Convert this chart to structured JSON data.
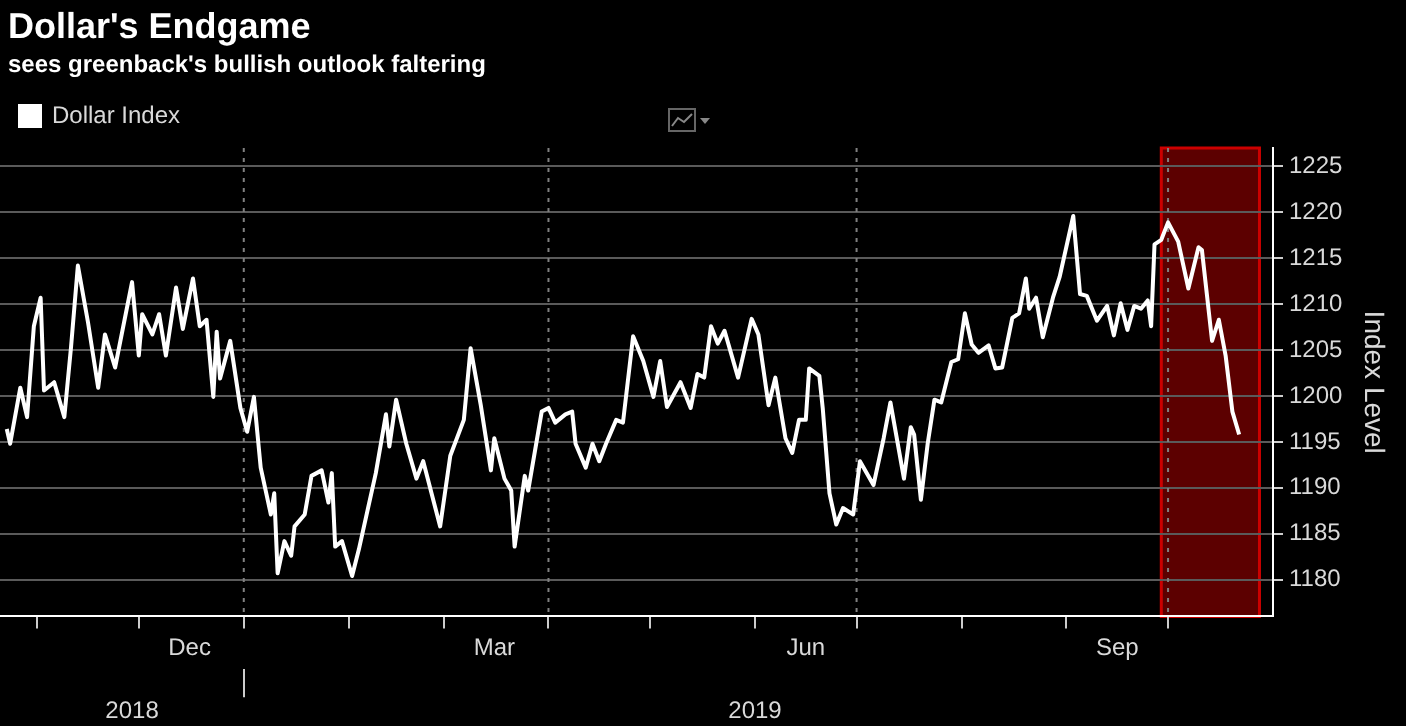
{
  "chart_data": {
    "type": "line",
    "title": "Dollar's Endgame",
    "subtitle": "sees greenback's bullish outlook faltering",
    "ylabel": "Index Level",
    "x": [
      "2018-10-23",
      "2018-10-24",
      "2018-10-27",
      "2018-10-29",
      "2018-10-31",
      "2018-11-02",
      "2018-11-03",
      "2018-11-06",
      "2018-11-09",
      "2018-11-11",
      "2018-11-13",
      "2018-11-16",
      "2018-11-19",
      "2018-11-21",
      "2018-11-24",
      "2018-11-29",
      "2018-12-01",
      "2018-12-02",
      "2018-12-05",
      "2018-12-07",
      "2018-12-09",
      "2018-12-12",
      "2018-12-14",
      "2018-12-17",
      "2018-12-19",
      "2018-12-21",
      "2018-12-23",
      "2018-12-24",
      "2018-12-25",
      "2018-12-28",
      "2018-12-31",
      "2019-01-02",
      "2019-01-04",
      "2019-01-06",
      "2019-01-09",
      "2019-01-10",
      "2019-01-11",
      "2019-01-13",
      "2019-01-15",
      "2019-01-16",
      "2019-01-19",
      "2019-01-21",
      "2019-01-24",
      "2019-01-26",
      "2019-01-27",
      "2019-01-28",
      "2019-01-30",
      "2019-02-02",
      "2019-02-04",
      "2019-02-09",
      "2019-02-12",
      "2019-02-13",
      "2019-02-15",
      "2019-02-18",
      "2019-02-21",
      "2019-02-23",
      "2019-02-28",
      "2019-03-03",
      "2019-03-07",
      "2019-03-09",
      "2019-03-12",
      "2019-03-15",
      "2019-03-16",
      "2019-03-19",
      "2019-03-21",
      "2019-03-22",
      "2019-03-25",
      "2019-03-26",
      "2019-03-30",
      "2019-04-01",
      "2019-04-03",
      "2019-04-06",
      "2019-04-08",
      "2019-04-09",
      "2019-04-12",
      "2019-04-14",
      "2019-04-16",
      "2019-04-18",
      "2019-04-21",
      "2019-04-23",
      "2019-04-26",
      "2019-04-29",
      "2019-05-02",
      "2019-05-04",
      "2019-05-06",
      "2019-05-10",
      "2019-05-13",
      "2019-05-15",
      "2019-05-17",
      "2019-05-19",
      "2019-05-21",
      "2019-05-23",
      "2019-05-27",
      "2019-05-31",
      "2019-06-02",
      "2019-06-05",
      "2019-06-07",
      "2019-06-10",
      "2019-06-12",
      "2019-06-14",
      "2019-06-16",
      "2019-06-17",
      "2019-06-20",
      "2019-06-21",
      "2019-06-23",
      "2019-06-25",
      "2019-06-27",
      "2019-06-30",
      "2019-07-02",
      "2019-07-06",
      "2019-07-09",
      "2019-07-11",
      "2019-07-15",
      "2019-07-17",
      "2019-07-18",
      "2019-07-20",
      "2019-07-22",
      "2019-07-24",
      "2019-07-26",
      "2019-07-29",
      "2019-07-31",
      "2019-08-02",
      "2019-08-04",
      "2019-08-06",
      "2019-08-09",
      "2019-08-11",
      "2019-08-13",
      "2019-08-16",
      "2019-08-18",
      "2019-08-20",
      "2019-08-21",
      "2019-08-23",
      "2019-08-25",
      "2019-08-28",
      "2019-08-30",
      "2019-09-03",
      "2019-09-05",
      "2019-09-07",
      "2019-09-10",
      "2019-09-13",
      "2019-09-15",
      "2019-09-17",
      "2019-09-19",
      "2019-09-21",
      "2019-09-23",
      "2019-09-25",
      "2019-09-26",
      "2019-09-27",
      "2019-09-29",
      "2019-10-01",
      "2019-10-04",
      "2019-10-07",
      "2019-10-10",
      "2019-10-11",
      "2019-10-14",
      "2019-10-16",
      "2019-10-18",
      "2019-10-20",
      "2019-10-22"
    ],
    "series": [
      {
        "name": "Dollar Index",
        "color": "#ffffff",
        "values": [
          1196.4,
          1194.8,
          1200.9,
          1197.7,
          1207.6,
          1210.7,
          1200.6,
          1201.5,
          1197.7,
          1205.4,
          1214.2,
          1208,
          1200.9,
          1206.7,
          1203.1,
          1212.4,
          1204.4,
          1208.9,
          1206.7,
          1208.9,
          1204.4,
          1211.8,
          1207.3,
          1212.8,
          1207.6,
          1208.3,
          1199.9,
          1207,
          1201.9,
          1206,
          1198.7,
          1196.1,
          1199.9,
          1192.2,
          1187.1,
          1189.4,
          1180.7,
          1184.2,
          1182.6,
          1185.8,
          1187.1,
          1191.3,
          1191.9,
          1188.4,
          1191.6,
          1183.6,
          1184.2,
          1180.4,
          1183.3,
          1191.6,
          1198,
          1194.5,
          1199.6,
          1194.8,
          1191,
          1192.9,
          1185.8,
          1193.5,
          1197.4,
          1205.2,
          1199,
          1191.9,
          1195.4,
          1191,
          1189.7,
          1183.6,
          1191.3,
          1189.7,
          1198.3,
          1198.7,
          1197.1,
          1198,
          1198.3,
          1194.8,
          1192.2,
          1194.8,
          1192.9,
          1194.8,
          1197.4,
          1197.1,
          1206.5,
          1203.8,
          1199.9,
          1203.8,
          1198.8,
          1201.5,
          1198.7,
          1202.4,
          1202,
          1207.6,
          1205.7,
          1207.1,
          1202,
          1208.4,
          1206.7,
          1199,
          1202,
          1195.4,
          1193.8,
          1197.4,
          1197.4,
          1203,
          1202.2,
          1198.7,
          1189.4,
          1186,
          1187.8,
          1187.1,
          1192.9,
          1190.3,
          1195.4,
          1199.3,
          1191,
          1196.6,
          1195.8,
          1188.7,
          1194.8,
          1199.6,
          1199.3,
          1203.7,
          1204,
          1209,
          1205.6,
          1204.7,
          1205.5,
          1203,
          1203.1,
          1208.5,
          1209,
          1212.8,
          1209.5,
          1210.7,
          1206.4,
          1210.7,
          1213,
          1219.6,
          1211.1,
          1210.9,
          1208.2,
          1209.8,
          1206.6,
          1210.1,
          1207.2,
          1209.8,
          1209.5,
          1210.4,
          1207.6,
          1216.5,
          1217,
          1218.9,
          1216.8,
          1211.7,
          1216.2,
          1215.9,
          1206,
          1208.3,
          1204.4,
          1198.3,
          1195.8
        ]
      }
    ],
    "xlim": [
      "2018-10-21",
      "2019-11-01"
    ],
    "xticks": [
      {
        "value": "2018-11-01",
        "label": null
      },
      {
        "value": "2018-12-01",
        "label": null
      },
      {
        "value": "2018-12-16",
        "label": "Dec"
      },
      {
        "value": "2019-01-01",
        "label": null
      },
      {
        "value": "2019-02-01",
        "label": null
      },
      {
        "value": "2019-03-01",
        "label": null
      },
      {
        "value": "2019-03-16",
        "label": "Mar"
      },
      {
        "value": "2019-04-01",
        "label": null
      },
      {
        "value": "2019-05-01",
        "label": null
      },
      {
        "value": "2019-06-01",
        "label": null
      },
      {
        "value": "2019-06-16",
        "label": "Jun"
      },
      {
        "value": "2019-07-01",
        "label": null
      },
      {
        "value": "2019-08-01",
        "label": null
      },
      {
        "value": "2019-09-01",
        "label": null
      },
      {
        "value": "2019-09-16",
        "label": "Sep"
      },
      {
        "value": "2019-10-01",
        "label": null
      }
    ],
    "ylim": [
      1176,
      1227
    ],
    "yticks": [
      1180,
      1185,
      1190,
      1195,
      1200,
      1205,
      1210,
      1215,
      1220,
      1225
    ],
    "grid": "y",
    "legend": "top left",
    "ref_lines": [
      {
        "axis": "x",
        "value": "2019-01-01",
        "color": "#808080",
        "line_style": "dotted"
      },
      {
        "axis": "x",
        "value": "2019-04-01",
        "color": "#808080",
        "line_style": "dotted"
      },
      {
        "axis": "x",
        "value": "2019-07-01",
        "color": "#808080",
        "line_style": "dotted"
      },
      {
        "axis": "x",
        "value": "2019-10-01",
        "color": "#808080",
        "line_style": "dotted"
      }
    ],
    "bands": [
      {
        "axis": "x",
        "from": "2019-09-29",
        "to": "2019-10-28",
        "color": "#cc0000"
      }
    ],
    "x2lim": [
      "2018-10-21",
      "2019-11-01"
    ],
    "x2ticks": [
      {
        "value": "2018-11-29",
        "label": "2018"
      },
      {
        "value": "2019-01-01",
        "label": null
      },
      {
        "value": "2019-06-01",
        "label": "2019"
      }
    ]
  }
}
